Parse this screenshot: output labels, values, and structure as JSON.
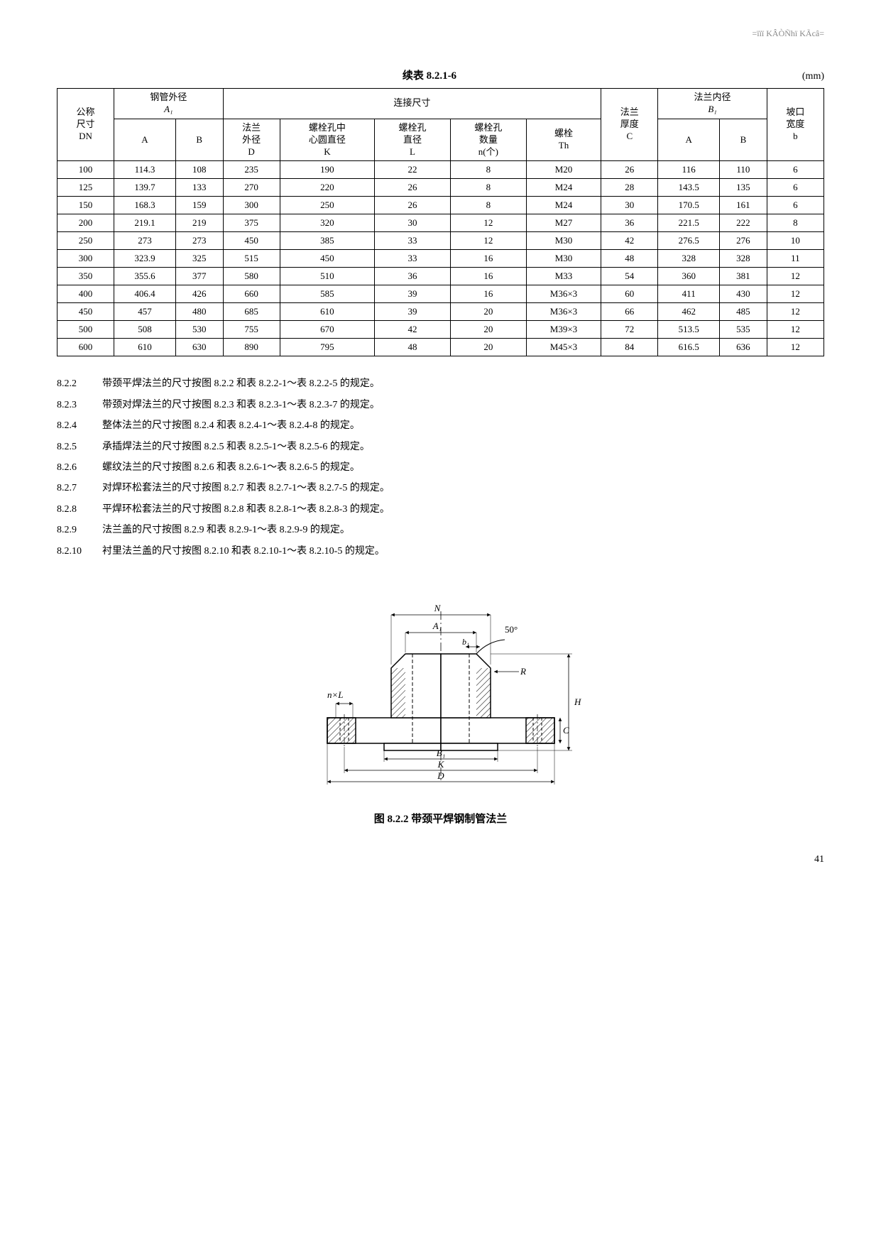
{
  "headerMark": "=ïïï KÂÒÑhï KÃcâ=",
  "tableTitle": "续表 8.2.1-6",
  "tableUnit": "(mm)",
  "headers": {
    "c1": "公称\n尺寸\nDN",
    "c2_group": "钢管外径",
    "c2_sub": "A₁",
    "c2a": "A",
    "c2b": "B",
    "c3_group": "连接尺寸",
    "c3a": "法兰\n外径\nD",
    "c3b": "螺栓孔中\n心圆直径\nK",
    "c3c": "螺栓孔\n直径\nL",
    "c3d": "螺栓孔\n数量\nn(个)",
    "c3e": "螺栓\nTh",
    "c4": "法兰\n厚度\nC",
    "c5_group": "法兰内径",
    "c5_sub": "B₁",
    "c5a": "A",
    "c5b": "B",
    "c6": "坡口\n宽度\nb"
  },
  "rows": [
    [
      "100",
      "114.3",
      "108",
      "235",
      "190",
      "22",
      "8",
      "M20",
      "26",
      "116",
      "110",
      "6"
    ],
    [
      "125",
      "139.7",
      "133",
      "270",
      "220",
      "26",
      "8",
      "M24",
      "28",
      "143.5",
      "135",
      "6"
    ],
    [
      "150",
      "168.3",
      "159",
      "300",
      "250",
      "26",
      "8",
      "M24",
      "30",
      "170.5",
      "161",
      "6"
    ],
    [
      "200",
      "219.1",
      "219",
      "375",
      "320",
      "30",
      "12",
      "M27",
      "36",
      "221.5",
      "222",
      "8"
    ],
    [
      "250",
      "273",
      "273",
      "450",
      "385",
      "33",
      "12",
      "M30",
      "42",
      "276.5",
      "276",
      "10"
    ],
    [
      "300",
      "323.9",
      "325",
      "515",
      "450",
      "33",
      "16",
      "M30",
      "48",
      "328",
      "328",
      "11"
    ],
    [
      "350",
      "355.6",
      "377",
      "580",
      "510",
      "36",
      "16",
      "M33",
      "54",
      "360",
      "381",
      "12"
    ],
    [
      "400",
      "406.4",
      "426",
      "660",
      "585",
      "39",
      "16",
      "M36×3",
      "60",
      "411",
      "430",
      "12"
    ],
    [
      "450",
      "457",
      "480",
      "685",
      "610",
      "39",
      "20",
      "M36×3",
      "66",
      "462",
      "485",
      "12"
    ],
    [
      "500",
      "508",
      "530",
      "755",
      "670",
      "42",
      "20",
      "M39×3",
      "72",
      "513.5",
      "535",
      "12"
    ],
    [
      "600",
      "610",
      "630",
      "890",
      "795",
      "48",
      "20",
      "M45×3",
      "84",
      "616.5",
      "636",
      "12"
    ]
  ],
  "notes": [
    {
      "n": "8.2.2",
      "t": "带颈平焊法兰的尺寸按图 8.2.2 和表 8.2.2-1～表 8.2.2-5 的规定。"
    },
    {
      "n": "8.2.3",
      "t": "带颈对焊法兰的尺寸按图 8.2.3 和表 8.2.3-1～表 8.2.3-7 的规定。"
    },
    {
      "n": "8.2.4",
      "t": "整体法兰的尺寸按图 8.2.4 和表 8.2.4-1～表 8.2.4-8 的规定。"
    },
    {
      "n": "8.2.5",
      "t": "承插焊法兰的尺寸按图 8.2.5 和表 8.2.5-1～表 8.2.5-6 的规定。"
    },
    {
      "n": "8.2.6",
      "t": "螺纹法兰的尺寸按图 8.2.6 和表 8.2.6-1～表 8.2.6-5 的规定。"
    },
    {
      "n": "8.2.7",
      "t": "对焊环松套法兰的尺寸按图 8.2.7 和表 8.2.7-1～表 8.2.7-5 的规定。"
    },
    {
      "n": "8.2.8",
      "t": "平焊环松套法兰的尺寸按图 8.2.8 和表 8.2.8-1～表 8.2.8-3 的规定。"
    },
    {
      "n": "8.2.9",
      "t": "法兰盖的尺寸按图 8.2.9 和表 8.2.9-1～表 8.2.9-9 的规定。"
    },
    {
      "n": "8.2.10",
      "t": "衬里法兰盖的尺寸按图 8.2.10 和表 8.2.10-1～表 8.2.10-5 的规定。"
    }
  ],
  "figure": {
    "caption": "图 8.2.2  带颈平焊钢制管法兰",
    "labels": {
      "N": "N",
      "A1": "A₁",
      "b1": "b₁",
      "angle": "50°",
      "R": "R",
      "H": "H",
      "C": "C",
      "B1": "B₁",
      "K": "K",
      "D": "D",
      "nL": "n×L"
    },
    "colors": {
      "stroke": "#000",
      "hatch": "#000",
      "bg": "#fff"
    }
  },
  "pageNumber": "41"
}
